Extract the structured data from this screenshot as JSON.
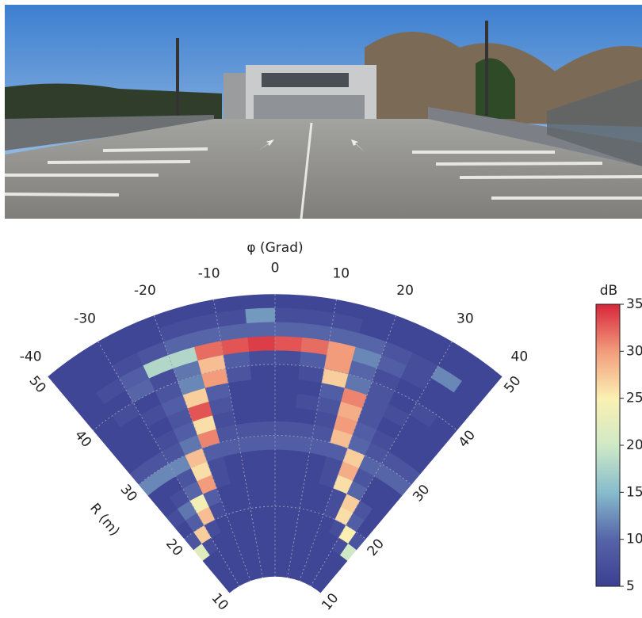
{
  "chart_data": {
    "type": "polar-heatmap",
    "xlabel": "φ (Grad)",
    "ylabel": "R (m)",
    "colorbar_label": "dB",
    "xlim": [
      -40,
      40
    ],
    "xticks": [
      -40,
      -30,
      -20,
      -10,
      0,
      10,
      20,
      30,
      40
    ],
    "ylim": [
      10,
      50
    ],
    "yticks": [
      10,
      20,
      30,
      40,
      50
    ],
    "clim": [
      5,
      35
    ],
    "cticks": [
      5,
      10,
      15,
      20,
      25,
      30,
      35
    ],
    "colormap": [
      "#3b3f92",
      "#5664a8",
      "#86bccd",
      "#cfe9c6",
      "#fbf0b2",
      "#f29c7c",
      "#d7263a"
    ],
    "grid": true,
    "x": [
      -37.5,
      -32.5,
      -27.5,
      -22.5,
      -17.5,
      -12.5,
      -7.5,
      -2.5,
      2.5,
      7.5,
      12.5,
      17.5,
      22.5,
      27.5,
      32.5,
      37.5
    ],
    "y": [
      11,
      13,
      15,
      17,
      19,
      21,
      23,
      25,
      27,
      29,
      31,
      33,
      35,
      37,
      39,
      41,
      43,
      45,
      47,
      49
    ],
    "values": [
      [
        6,
        6,
        6,
        6,
        6,
        6,
        6,
        6,
        6,
        6,
        6,
        6,
        6,
        6,
        6,
        6
      ],
      [
        6,
        6,
        6,
        6,
        6,
        6,
        6,
        6,
        6,
        6,
        6,
        6,
        6,
        6,
        6,
        6
      ],
      [
        6,
        6,
        6,
        6,
        6,
        6,
        6,
        6,
        6,
        6,
        6,
        6,
        6,
        6,
        6,
        6
      ],
      [
        22,
        7,
        6,
        6,
        6,
        6,
        6,
        6,
        6,
        6,
        6,
        6,
        6,
        6,
        7,
        20
      ],
      [
        8,
        27,
        7,
        6,
        6,
        6,
        6,
        6,
        6,
        6,
        6,
        6,
        6,
        7,
        25,
        8
      ],
      [
        6,
        9,
        28,
        7,
        6,
        6,
        6,
        6,
        6,
        6,
        6,
        6,
        7,
        26,
        9,
        6
      ],
      [
        7,
        11,
        24,
        9,
        6,
        6,
        6,
        6,
        6,
        6,
        6,
        6,
        7,
        27,
        8,
        6
      ],
      [
        6,
        7,
        10,
        30,
        7,
        6,
        6,
        6,
        6,
        6,
        6,
        7,
        26,
        10,
        6,
        6
      ],
      [
        6,
        6,
        8,
        26,
        7,
        6,
        6,
        6,
        6,
        6,
        6,
        7,
        29,
        8,
        6,
        6
      ],
      [
        12,
        12,
        12,
        28,
        9,
        9,
        9,
        9,
        9,
        9,
        9,
        9,
        27,
        10,
        10,
        10
      ],
      [
        8,
        8,
        8,
        11,
        31,
        8,
        8,
        8,
        8,
        8,
        8,
        28,
        10,
        8,
        8,
        8
      ],
      [
        6,
        6,
        7,
        9,
        26,
        7,
        6,
        6,
        6,
        6,
        7,
        30,
        9,
        7,
        6,
        6
      ],
      [
        6,
        6,
        6,
        8,
        33,
        8,
        6,
        6,
        6,
        7,
        8,
        29,
        8,
        6,
        6,
        6
      ],
      [
        6,
        6,
        7,
        9,
        27,
        9,
        6,
        6,
        6,
        6,
        9,
        31,
        8,
        7,
        6,
        6
      ],
      [
        6,
        7,
        6,
        8,
        12,
        30,
        8,
        6,
        6,
        7,
        27,
        11,
        8,
        6,
        7,
        6
      ],
      [
        6,
        6,
        10,
        7,
        11,
        28,
        9,
        7,
        7,
        9,
        30,
        10,
        7,
        6,
        6,
        6
      ],
      [
        6,
        7,
        9,
        18,
        18,
        32,
        33,
        34,
        33,
        32,
        30,
        12,
        9,
        7,
        6,
        6
      ],
      [
        6,
        6,
        7,
        8,
        10,
        10,
        10,
        10,
        10,
        10,
        10,
        10,
        8,
        7,
        12,
        6
      ],
      [
        6,
        6,
        6,
        6,
        7,
        7,
        7,
        13,
        7,
        7,
        7,
        6,
        6,
        6,
        6,
        6
      ],
      [
        6,
        6,
        6,
        6,
        6,
        6,
        6,
        6,
        6,
        6,
        6,
        6,
        6,
        6,
        6,
        6
      ]
    ]
  }
}
